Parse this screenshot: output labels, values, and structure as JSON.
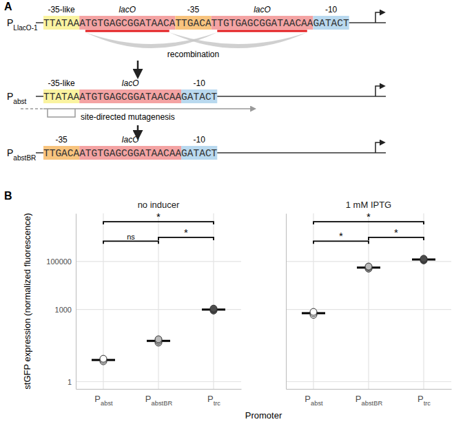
{
  "panel_labels": [
    "A",
    "B"
  ],
  "diagram": {
    "rows": [
      {
        "label": "PLlacO-1",
        "segments": [
          {
            "sequence": "TTATAA",
            "element": "-35-like",
            "color": "#faf3a0"
          },
          {
            "sequence": "ATGTGAGCGGATAACA",
            "element": "lacO",
            "color": "#f4a3a3"
          },
          {
            "sequence": "TTGACA",
            "element": "-35",
            "color": "#f8c47e"
          },
          {
            "sequence": "TTGTGAGCGGATAACAA",
            "element": "lacO",
            "color": "#f4a3a3"
          },
          {
            "sequence": "GATACT",
            "element": "-10",
            "color": "#b9d9ef"
          }
        ]
      },
      {
        "label": "Pabst",
        "segments": [
          {
            "sequence": "TTATAA",
            "element": "-35-like",
            "color": "#faf3a0"
          },
          {
            "sequence": "ATGTGAGCGGATAACAA",
            "element": "lacO",
            "color": "#f4a3a3"
          },
          {
            "sequence": "GATACT",
            "element": "-10",
            "color": "#b9d9ef"
          }
        ]
      },
      {
        "label": "PabstBR",
        "segments": [
          {
            "sequence": "TTGACA",
            "element": "-35",
            "color": "#f8c47e"
          },
          {
            "sequence": "ATGTGAGCGGATAACAA",
            "element": "lacO",
            "color": "#f4a3a3"
          },
          {
            "sequence": "GATACT",
            "element": "-10",
            "color": "#b9d9ef"
          }
        ]
      }
    ],
    "steps": [
      "recombination",
      "site-directed mutagenesis"
    ]
  },
  "axis_titles": {
    "x": "Promoter",
    "y": "stGFP expression (normalized fluorescence)"
  },
  "chart_data": [
    {
      "type": "dot",
      "title": "no inducer",
      "categories": [
        "Pabst",
        "PabstBR",
        "Ptrc"
      ],
      "values": [
        8,
        50,
        1000
      ],
      "replicates": [
        [
          7,
          8,
          9
        ],
        [
          42,
          50,
          58
        ],
        [
          900,
          1000,
          1100
        ]
      ],
      "colors": [
        "#ffffff",
        "#bdbdbd",
        "#4d4d4d"
      ],
      "log": "y",
      "ylim": [
        0.5,
        10000000
      ],
      "yticks": [
        1,
        1000,
        100000
      ],
      "grid": true,
      "comparisons": [
        {
          "from": "Pabst",
          "to": "Ptrc",
          "label": "*",
          "y": 4500000
        },
        {
          "from": "PabstBR",
          "to": "Ptrc",
          "label": "*",
          "y": 1000000
        },
        {
          "from": "Pabst",
          "to": "PabstBR",
          "label": "ns",
          "y": 700000
        }
      ]
    },
    {
      "type": "dot",
      "title": "1 mM IPTG",
      "categories": [
        "Pabst",
        "PabstBR",
        "Ptrc"
      ],
      "values": [
        700,
        56000,
        120000
      ],
      "replicates": [
        [
          600,
          700,
          800
        ],
        [
          50000,
          56000,
          62000
        ],
        [
          110000,
          120000,
          130000
        ]
      ],
      "colors": [
        "#ffffff",
        "#bdbdbd",
        "#4d4d4d"
      ],
      "log": "y",
      "ylim": [
        0.5,
        10000000
      ],
      "yticks": [
        1,
        1000,
        100000
      ],
      "grid": true,
      "tick_labels": "x",
      "comparisons": [
        {
          "from": "Pabst",
          "to": "Ptrc",
          "label": "*",
          "y": 4500000
        },
        {
          "from": "PabstBR",
          "to": "Ptrc",
          "label": "*",
          "y": 1000000
        },
        {
          "from": "Pabst",
          "to": "PabstBR",
          "label": "*",
          "y": 700000
        }
      ]
    }
  ]
}
